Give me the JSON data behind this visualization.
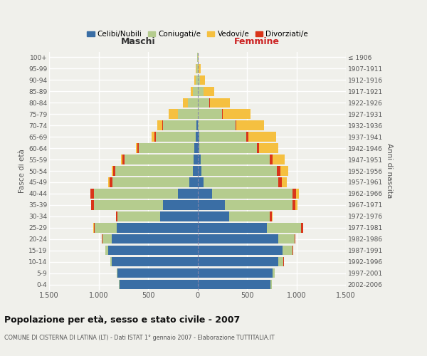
{
  "age_groups": [
    "0-4",
    "5-9",
    "10-14",
    "15-19",
    "20-24",
    "25-29",
    "30-34",
    "35-39",
    "40-44",
    "45-49",
    "50-54",
    "55-59",
    "60-64",
    "65-69",
    "70-74",
    "75-79",
    "80-84",
    "85-89",
    "90-94",
    "95-99",
    "100+"
  ],
  "birth_years": [
    "2002-2006",
    "1997-2001",
    "1992-1996",
    "1987-1991",
    "1982-1986",
    "1977-1981",
    "1972-1976",
    "1967-1971",
    "1962-1966",
    "1957-1961",
    "1952-1956",
    "1947-1951",
    "1942-1946",
    "1937-1941",
    "1932-1936",
    "1927-1931",
    "1922-1926",
    "1917-1921",
    "1912-1916",
    "1907-1911",
    "≤ 1906"
  ],
  "male": {
    "celibe": [
      790,
      810,
      870,
      900,
      870,
      820,
      380,
      350,
      200,
      80,
      50,
      40,
      30,
      20,
      10,
      0,
      0,
      0,
      0,
      0,
      0
    ],
    "coniugato": [
      3,
      5,
      10,
      30,
      90,
      220,
      430,
      700,
      850,
      780,
      780,
      700,
      560,
      400,
      340,
      200,
      100,
      50,
      20,
      10,
      5
    ],
    "vedovo": [
      1,
      1,
      1,
      2,
      2,
      2,
      2,
      3,
      5,
      10,
      10,
      15,
      20,
      30,
      50,
      90,
      50,
      20,
      10,
      5,
      0
    ],
    "divorziato": [
      1,
      1,
      2,
      3,
      5,
      10,
      15,
      25,
      30,
      30,
      25,
      20,
      15,
      15,
      5,
      0,
      0,
      0,
      0,
      0,
      0
    ]
  },
  "female": {
    "nubile": [
      740,
      760,
      820,
      860,
      820,
      700,
      320,
      280,
      150,
      60,
      40,
      30,
      20,
      15,
      5,
      0,
      0,
      0,
      0,
      0,
      0
    ],
    "coniugata": [
      10,
      20,
      50,
      100,
      160,
      350,
      410,
      680,
      810,
      760,
      760,
      700,
      580,
      480,
      380,
      250,
      120,
      60,
      25,
      10,
      5
    ],
    "vedova": [
      1,
      1,
      1,
      2,
      3,
      5,
      10,
      20,
      30,
      50,
      80,
      120,
      200,
      280,
      280,
      280,
      200,
      110,
      50,
      20,
      5
    ],
    "divorziata": [
      1,
      2,
      3,
      5,
      8,
      15,
      20,
      30,
      35,
      35,
      35,
      30,
      20,
      20,
      10,
      5,
      5,
      2,
      0,
      0,
      0
    ]
  },
  "colors": {
    "celibe_nubile": "#3a6ea5",
    "coniugato_a": "#b5cc8e",
    "vedovo_a": "#f5c040",
    "divorziato_a": "#d9351a"
  },
  "xlim": 1500,
  "title": "Popolazione per età, sesso e stato civile - 2007",
  "subtitle": "COMUNE DI CISTERNA DI LATINA (LT) - Dati ISTAT 1° gennaio 2007 - Elaborazione TUTTITALIA.IT",
  "xlabel_left": "Maschi",
  "xlabel_right": "Femmine",
  "ylabel_left": "Fasce di età",
  "ylabel_right": "Anni di nascita",
  "legend_labels": [
    "Celibi/Nubili",
    "Coniugati/e",
    "Vedovi/e",
    "Divorziati/e"
  ],
  "background_color": "#f0f0eb"
}
